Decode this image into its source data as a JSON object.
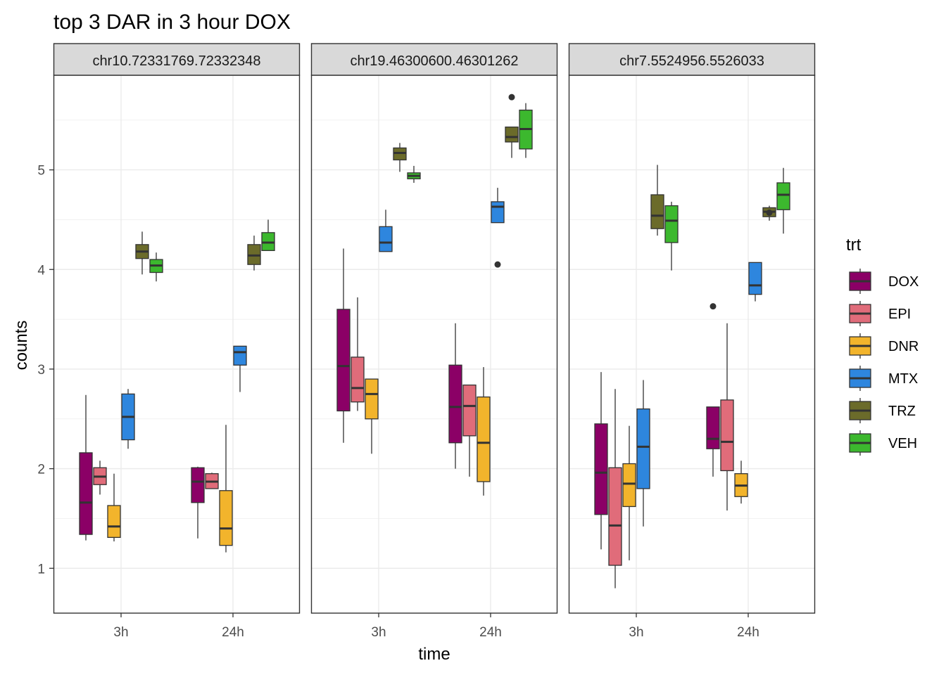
{
  "chart_data": {
    "type": "boxplot",
    "title": "top 3 DAR in 3 hour DOX",
    "xlabel": "time",
    "ylabel": "counts",
    "ylim": [
      0.55,
      5.95
    ],
    "yticks": [
      1,
      2,
      3,
      4,
      5
    ],
    "categories": [
      "3h",
      "24h"
    ],
    "grid": true,
    "legend": {
      "title": "trt",
      "position": "right",
      "entries": [
        "DOX",
        "EPI",
        "DNR",
        "MTX",
        "TRZ",
        "VEH"
      ]
    },
    "colors": {
      "DOX": "#8B0066",
      "EPI": "#E06C7A",
      "DNR": "#F2B42C",
      "MTX": "#2E86DE",
      "TRZ": "#6B6B2A",
      "VEH": "#3CB82E"
    },
    "panels": [
      {
        "label": "chr10.72331769.72332348",
        "groups": [
          {
            "time": "3h",
            "trt": "DOX",
            "min": 1.28,
            "q1": 1.34,
            "median": 1.66,
            "q3": 2.16,
            "max": 2.74
          },
          {
            "time": "3h",
            "trt": "EPI",
            "min": 1.74,
            "q1": 1.84,
            "median": 1.92,
            "q3": 2.01,
            "max": 2.08
          },
          {
            "time": "3h",
            "trt": "DNR",
            "min": 1.27,
            "q1": 1.31,
            "median": 1.42,
            "q3": 1.63,
            "max": 1.95
          },
          {
            "time": "3h",
            "trt": "MTX",
            "min": 2.2,
            "q1": 2.29,
            "median": 2.52,
            "q3": 2.75,
            "max": 2.8
          },
          {
            "time": "3h",
            "trt": "TRZ",
            "min": 3.95,
            "q1": 4.11,
            "median": 4.18,
            "q3": 4.25,
            "max": 4.38
          },
          {
            "time": "3h",
            "trt": "VEH",
            "min": 3.88,
            "q1": 3.97,
            "median": 4.04,
            "q3": 4.1,
            "max": 4.17
          },
          {
            "time": "24h",
            "trt": "DOX",
            "min": 1.3,
            "q1": 1.66,
            "median": 1.87,
            "q3": 2.01,
            "max": 2.02
          },
          {
            "time": "24h",
            "trt": "EPI",
            "min": 1.8,
            "q1": 1.8,
            "median": 1.87,
            "q3": 1.95,
            "max": 1.96
          },
          {
            "time": "24h",
            "trt": "DNR",
            "min": 1.16,
            "q1": 1.23,
            "median": 1.4,
            "q3": 1.78,
            "max": 2.44
          },
          {
            "time": "24h",
            "trt": "MTX",
            "min": 2.77,
            "q1": 3.04,
            "median": 3.17,
            "q3": 3.23,
            "max": 3.23
          },
          {
            "time": "24h",
            "trt": "TRZ",
            "min": 3.99,
            "q1": 4.05,
            "median": 4.14,
            "q3": 4.25,
            "max": 4.34
          },
          {
            "time": "24h",
            "trt": "VEH",
            "min": 4.19,
            "q1": 4.19,
            "median": 4.27,
            "q3": 4.37,
            "max": 4.5
          }
        ]
      },
      {
        "label": "chr19.46300600.46301262",
        "groups": [
          {
            "time": "3h",
            "trt": "DOX",
            "min": 2.26,
            "q1": 2.58,
            "median": 3.03,
            "q3": 3.6,
            "max": 4.21
          },
          {
            "time": "3h",
            "trt": "EPI",
            "min": 2.58,
            "q1": 2.67,
            "median": 2.81,
            "q3": 3.12,
            "max": 3.72
          },
          {
            "time": "3h",
            "trt": "DNR",
            "min": 2.15,
            "q1": 2.5,
            "median": 2.75,
            "q3": 2.9,
            "max": 2.9
          },
          {
            "time": "3h",
            "trt": "MTX",
            "min": 4.18,
            "q1": 4.18,
            "median": 4.27,
            "q3": 4.43,
            "max": 4.6
          },
          {
            "time": "3h",
            "trt": "TRZ",
            "min": 4.98,
            "q1": 5.1,
            "median": 5.17,
            "q3": 5.22,
            "max": 5.27
          },
          {
            "time": "3h",
            "trt": "VEH",
            "min": 4.87,
            "q1": 4.91,
            "median": 4.94,
            "q3": 4.97,
            "max": 5.04
          },
          {
            "time": "24h",
            "trt": "DOX",
            "min": 2.0,
            "q1": 2.26,
            "median": 2.62,
            "q3": 3.04,
            "max": 3.46
          },
          {
            "time": "24h",
            "trt": "EPI",
            "min": 1.92,
            "q1": 2.33,
            "median": 2.63,
            "q3": 2.84,
            "max": 2.84
          },
          {
            "time": "24h",
            "trt": "DNR",
            "min": 1.73,
            "q1": 1.87,
            "median": 2.26,
            "q3": 2.72,
            "max": 3.02
          },
          {
            "time": "24h",
            "trt": "MTX",
            "min": 4.47,
            "q1": 4.47,
            "median": 4.63,
            "q3": 4.68,
            "max": 4.82,
            "outliers": [
              4.05
            ]
          },
          {
            "time": "24h",
            "trt": "TRZ",
            "min": 5.12,
            "q1": 5.28,
            "median": 5.33,
            "q3": 5.43,
            "max": 5.43,
            "outliers": [
              5.73
            ]
          },
          {
            "time": "24h",
            "trt": "VEH",
            "min": 5.12,
            "q1": 5.21,
            "median": 5.41,
            "q3": 5.6,
            "max": 5.67
          }
        ]
      },
      {
        "label": "chr7.5524956.5526033",
        "groups": [
          {
            "time": "3h",
            "trt": "DOX",
            "min": 1.19,
            "q1": 1.54,
            "median": 1.96,
            "q3": 2.45,
            "max": 2.97
          },
          {
            "time": "3h",
            "trt": "EPI",
            "min": 0.8,
            "q1": 1.03,
            "median": 1.43,
            "q3": 2.01,
            "max": 2.8
          },
          {
            "time": "3h",
            "trt": "DNR",
            "min": 1.08,
            "q1": 1.62,
            "median": 1.85,
            "q3": 2.05,
            "max": 2.43
          },
          {
            "time": "3h",
            "trt": "MTX",
            "min": 1.42,
            "q1": 1.8,
            "median": 2.22,
            "q3": 2.6,
            "max": 2.89
          },
          {
            "time": "3h",
            "trt": "TRZ",
            "min": 4.34,
            "q1": 4.41,
            "median": 4.54,
            "q3": 4.75,
            "max": 5.05
          },
          {
            "time": "3h",
            "trt": "VEH",
            "min": 3.99,
            "q1": 4.27,
            "median": 4.49,
            "q3": 4.64,
            "max": 4.68
          },
          {
            "time": "24h",
            "trt": "DOX",
            "min": 1.92,
            "q1": 2.2,
            "median": 2.3,
            "q3": 2.62,
            "max": 2.62,
            "outliers": [
              3.63
            ]
          },
          {
            "time": "24h",
            "trt": "EPI",
            "min": 1.58,
            "q1": 1.98,
            "median": 2.27,
            "q3": 2.69,
            "max": 3.46
          },
          {
            "time": "24h",
            "trt": "DNR",
            "min": 1.65,
            "q1": 1.72,
            "median": 1.83,
            "q3": 1.95,
            "max": 2.08
          },
          {
            "time": "24h",
            "trt": "MTX",
            "min": 3.68,
            "q1": 3.75,
            "median": 3.84,
            "q3": 4.07,
            "max": 4.07
          },
          {
            "time": "24h",
            "trt": "TRZ",
            "min": 4.49,
            "q1": 4.53,
            "median": 4.58,
            "q3": 4.62,
            "max": 4.64,
            "outliers": [
              4.57
            ]
          },
          {
            "time": "24h",
            "trt": "VEH",
            "min": 4.36,
            "q1": 4.6,
            "median": 4.75,
            "q3": 4.87,
            "max": 5.02
          }
        ]
      }
    ]
  }
}
